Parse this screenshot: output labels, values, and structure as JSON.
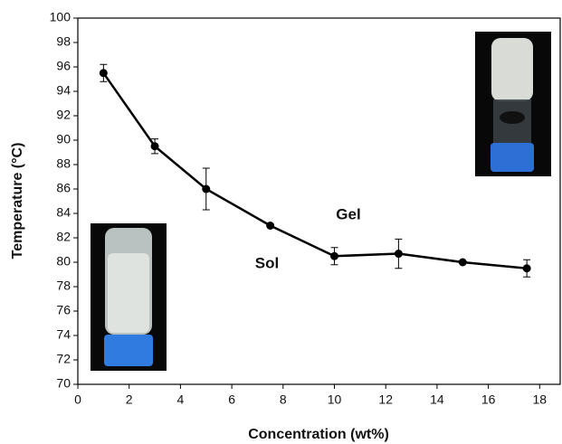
{
  "chart_data": {
    "type": "line",
    "x_label": "Concentration (wt%)",
    "y_label": "Temperature (°C)",
    "x": [
      1,
      3,
      5,
      7.5,
      10,
      12.5,
      15,
      17.5
    ],
    "series": [
      {
        "color": "#000000",
        "values": [
          95.5,
          89.5,
          86.0,
          83.0,
          80.5,
          80.7,
          80.0,
          79.5
        ],
        "errors": [
          0.7,
          0.6,
          1.7,
          0,
          0.7,
          1.2,
          0,
          0.7
        ]
      }
    ],
    "xlim": [
      0,
      18.8
    ],
    "ylim": [
      70,
      100
    ],
    "xticks": [
      0,
      2,
      4,
      6,
      8,
      10,
      12,
      14,
      16,
      18
    ],
    "yticks": [
      70,
      72,
      74,
      76,
      78,
      80,
      82,
      84,
      86,
      88,
      90,
      92,
      94,
      96,
      98,
      100
    ],
    "annotations": [
      "Gel",
      "Sol"
    ]
  }
}
